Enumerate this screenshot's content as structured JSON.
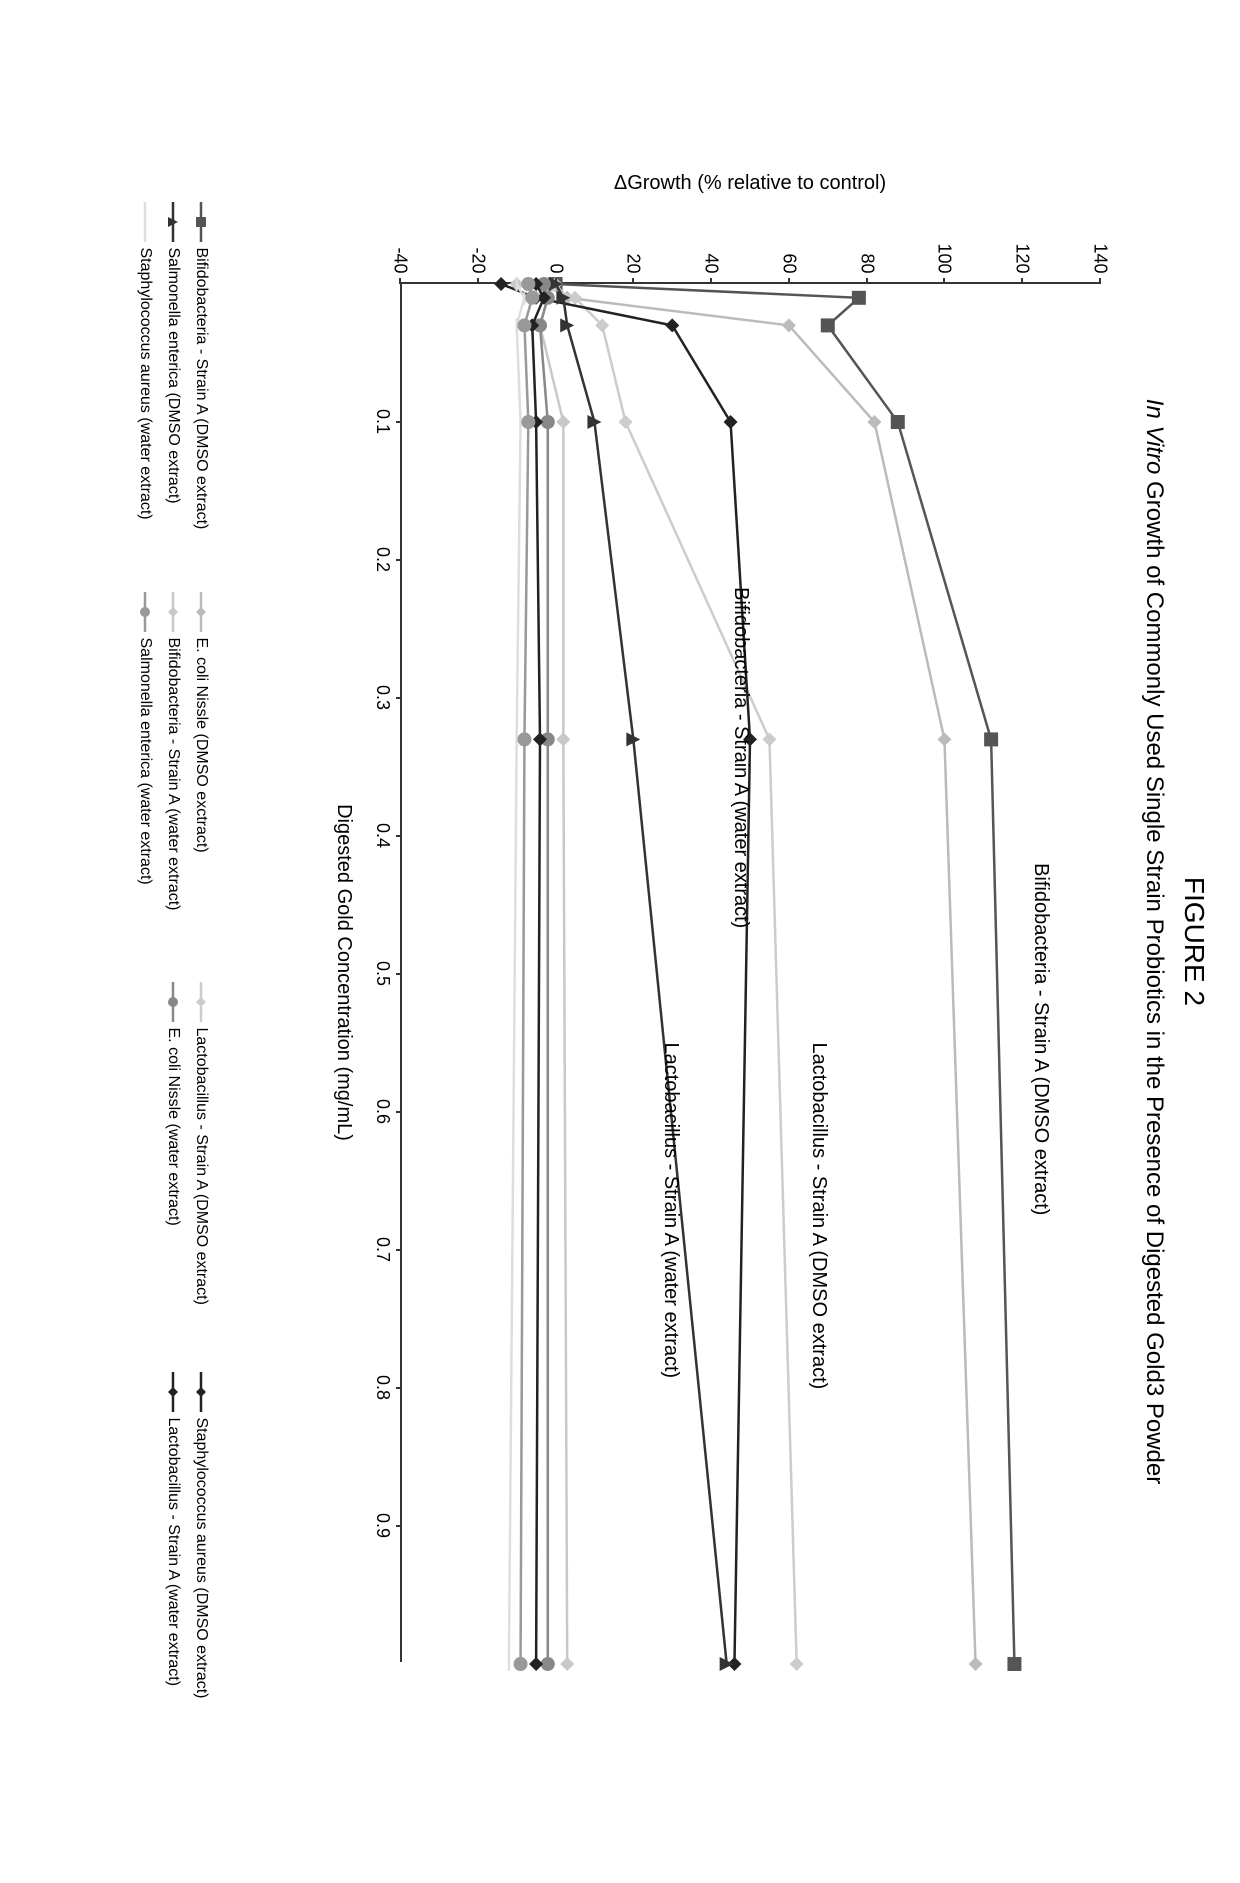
{
  "figure_label": "FIGURE 2",
  "chart": {
    "type": "line",
    "title_italic_prefix": "In Vitro",
    "title_rest": " Growth of Commonly Used Single Strain Probiotics in the Presence of Digested Gold3 Powder",
    "ylabel": "ΔGrowth (% relative to control)",
    "xlabel": "Digested Gold Concentration (mg/mL)",
    "xlim": [
      0,
      1.0
    ],
    "ylim": [
      -40,
      140
    ],
    "xticks": [
      0.1,
      0.2,
      0.3,
      0.4,
      0.5,
      0.6,
      0.7,
      0.8,
      0.9
    ],
    "yticks": [
      -40,
      -20,
      0,
      20,
      40,
      60,
      80,
      100,
      120,
      140
    ],
    "background_color": "#ffffff",
    "axis_color": "#333333",
    "label_fontsize": 20,
    "tick_fontsize": 18,
    "line_width": 2.5,
    "marker_size": 7,
    "series": [
      {
        "name": "Bifidobacteria - Strain A (DMSO extract)",
        "color": "#555555",
        "marker": "square",
        "x": [
          0,
          0.01,
          0.03,
          0.1,
          0.33,
          1.0
        ],
        "y": [
          0,
          78,
          70,
          88,
          112,
          118
        ],
        "inline_label": "Bifidobacteria - Strain A (DMSO extract)",
        "inline_label_pos": [
          0.42,
          125
        ]
      },
      {
        "name": "E. coli Nissle (DMSO extract)",
        "color": "#bbbbbb",
        "marker": "diamond",
        "x": [
          0,
          0.01,
          0.03,
          0.1,
          0.33,
          1.0
        ],
        "y": [
          0,
          3,
          60,
          82,
          100,
          108
        ]
      },
      {
        "name": "Lactobacillus - Strain A (DMSO extract)",
        "color": "#cccccc",
        "marker": "diamond",
        "x": [
          0,
          0.01,
          0.03,
          0.1,
          0.33,
          1.0
        ],
        "y": [
          -5,
          5,
          12,
          18,
          55,
          62
        ],
        "inline_label": "Lactobacillus - Strain A (DMSO extract)",
        "inline_label_pos": [
          0.55,
          68
        ]
      },
      {
        "name": "Staphylococcus aureus (DMSO extract)",
        "color": "#222222",
        "marker": "diamond-filled",
        "x": [
          0,
          0.01,
          0.03,
          0.1,
          0.33,
          1.0
        ],
        "y": [
          -14,
          -5,
          30,
          45,
          50,
          46
        ],
        "inline_label": "Bifidobacteria - Strain A (water extract)",
        "inline_label_pos": [
          0.22,
          48
        ]
      },
      {
        "name": "Salmonella enterica (DMSO extract)",
        "color": "#333333",
        "marker": "triangle",
        "x": [
          0,
          0.01,
          0.03,
          0.1,
          0.33,
          1.0
        ],
        "y": [
          0,
          2,
          3,
          10,
          20,
          44
        ],
        "inline_label": "Lactobacillus - Strain A (water extract)",
        "inline_label_pos": [
          0.55,
          30
        ]
      },
      {
        "name": "Bifidobacteria - Strain A (water extract)",
        "color": "#c8c8c8",
        "marker": "diamond",
        "x": [
          0,
          0.01,
          0.03,
          0.1,
          0.33,
          1.0
        ],
        "y": [
          -10,
          -2,
          -4,
          2,
          2,
          3
        ]
      },
      {
        "name": "E. coli Nissle (water extract)",
        "color": "#888888",
        "marker": "circle",
        "x": [
          0,
          0.01,
          0.03,
          0.1,
          0.33,
          1.0
        ],
        "y": [
          -3,
          -2,
          -4,
          -2,
          -2,
          -2
        ]
      },
      {
        "name": "Lactobacillus - Strain A (water extract)",
        "color": "#222222",
        "marker": "diamond-filled",
        "x": [
          0,
          0.01,
          0.03,
          0.1,
          0.33,
          1.0
        ],
        "y": [
          -5,
          -3,
          -6,
          -5,
          -4,
          -5
        ]
      },
      {
        "name": "Staphylococcus aureus (water extract)",
        "color": "#dddddd",
        "marker": "dash",
        "x": [
          0,
          0.01,
          0.03,
          0.1,
          0.33,
          1.0
        ],
        "y": [
          -10,
          -8,
          -10,
          -9,
          -10,
          -12
        ]
      },
      {
        "name": "Salmonella enterica (water extract)",
        "color": "#999999",
        "marker": "circle",
        "x": [
          0,
          0.01,
          0.03,
          0.1,
          0.33,
          1.0
        ],
        "y": [
          -7,
          -6,
          -8,
          -7,
          -8,
          -9
        ]
      }
    ],
    "legend_order": [
      "Bifidobacteria - Strain A (DMSO extract)",
      "E. coli Nissle (DMSO exctract)",
      "Lactobacillus - Strain A (DMSO extract)",
      "Staphylococcus aureus (DMSO extract)",
      "Salmonella enterica (DMSO extract)",
      "Bifidobacteria - Strain A (water extract)",
      "E. coli Nissle (water extract)",
      "Lactobacillus - Strain A (water extract)",
      "Staphylococcus aureus (water extract)",
      "Salmonella enterica (water extract)"
    ],
    "legend_markers": [
      "square",
      "diamond",
      "diamond",
      "diamond-filled",
      "triangle",
      "diamond",
      "circle",
      "diamond-filled",
      "dash",
      "circle"
    ],
    "legend_colors": [
      "#555555",
      "#bbbbbb",
      "#cccccc",
      "#222222",
      "#333333",
      "#c8c8c8",
      "#888888",
      "#222222",
      "#dddddd",
      "#999999"
    ]
  }
}
